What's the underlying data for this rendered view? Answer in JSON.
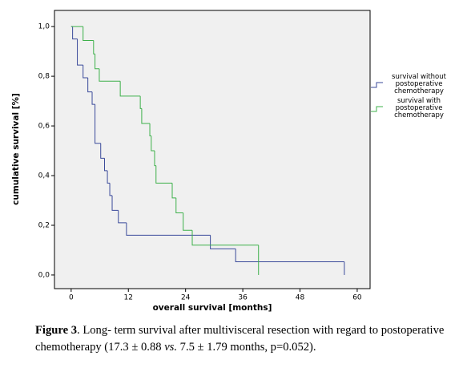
{
  "chart_data": {
    "type": "step",
    "ylabel": "cumulative survival [%]",
    "xlabel": "overall survival [months]",
    "xlim": [
      -3.5,
      62.7
    ],
    "ylim": [
      -0.055,
      1.065
    ],
    "xticks": [
      0,
      12,
      24,
      36,
      48,
      60
    ],
    "yticks": [
      {
        "value": 0,
        "label": "0,0"
      },
      {
        "value": 0.2,
        "label": "0,2"
      },
      {
        "value": 0.4,
        "label": "0,4"
      },
      {
        "value": 0.6,
        "label": "0,6"
      },
      {
        "value": 0.8,
        "label": "0,8"
      },
      {
        "value": 1.0,
        "label": "1,0"
      }
    ],
    "series": [
      {
        "name": "survival without postoperative chemotherapy",
        "color": "#3a4a9a",
        "x": [
          0,
          0.3,
          1.3,
          2.5,
          3.5,
          4.4,
          5.0,
          6.2,
          7.0,
          7.6,
          8.1,
          8.6,
          9.9,
          11.6,
          29.2,
          34.5,
          57.3
        ],
        "values": [
          1.0,
          0.95,
          0.845,
          0.794,
          0.737,
          0.687,
          0.53,
          0.47,
          0.42,
          0.37,
          0.32,
          0.26,
          0.21,
          0.16,
          0.105,
          0.053,
          0
        ]
      },
      {
        "name": "survival with postoperative chemotherapy",
        "color": "#3db04a",
        "x": [
          0,
          2.5,
          4.7,
          5.0,
          5.9,
          10.3,
          14.5,
          14.8,
          16.5,
          16.8,
          17.5,
          17.8,
          21.2,
          22.0,
          23.5,
          25.4,
          39.3
        ],
        "values": [
          1.0,
          0.944,
          0.89,
          0.83,
          0.78,
          0.72,
          0.67,
          0.61,
          0.56,
          0.5,
          0.44,
          0.37,
          0.31,
          0.25,
          0.18,
          0.12,
          0
        ]
      }
    ]
  },
  "caption": {
    "label": "Figure 3",
    "text_1": ". Long- term survival after multivisceral resection with regard to postoperative chemotherapy (17.3 ± 0.88 ",
    "emphasis": "vs.",
    "text_2": " 7.5 ± 1.79 months, p=0.052)."
  }
}
